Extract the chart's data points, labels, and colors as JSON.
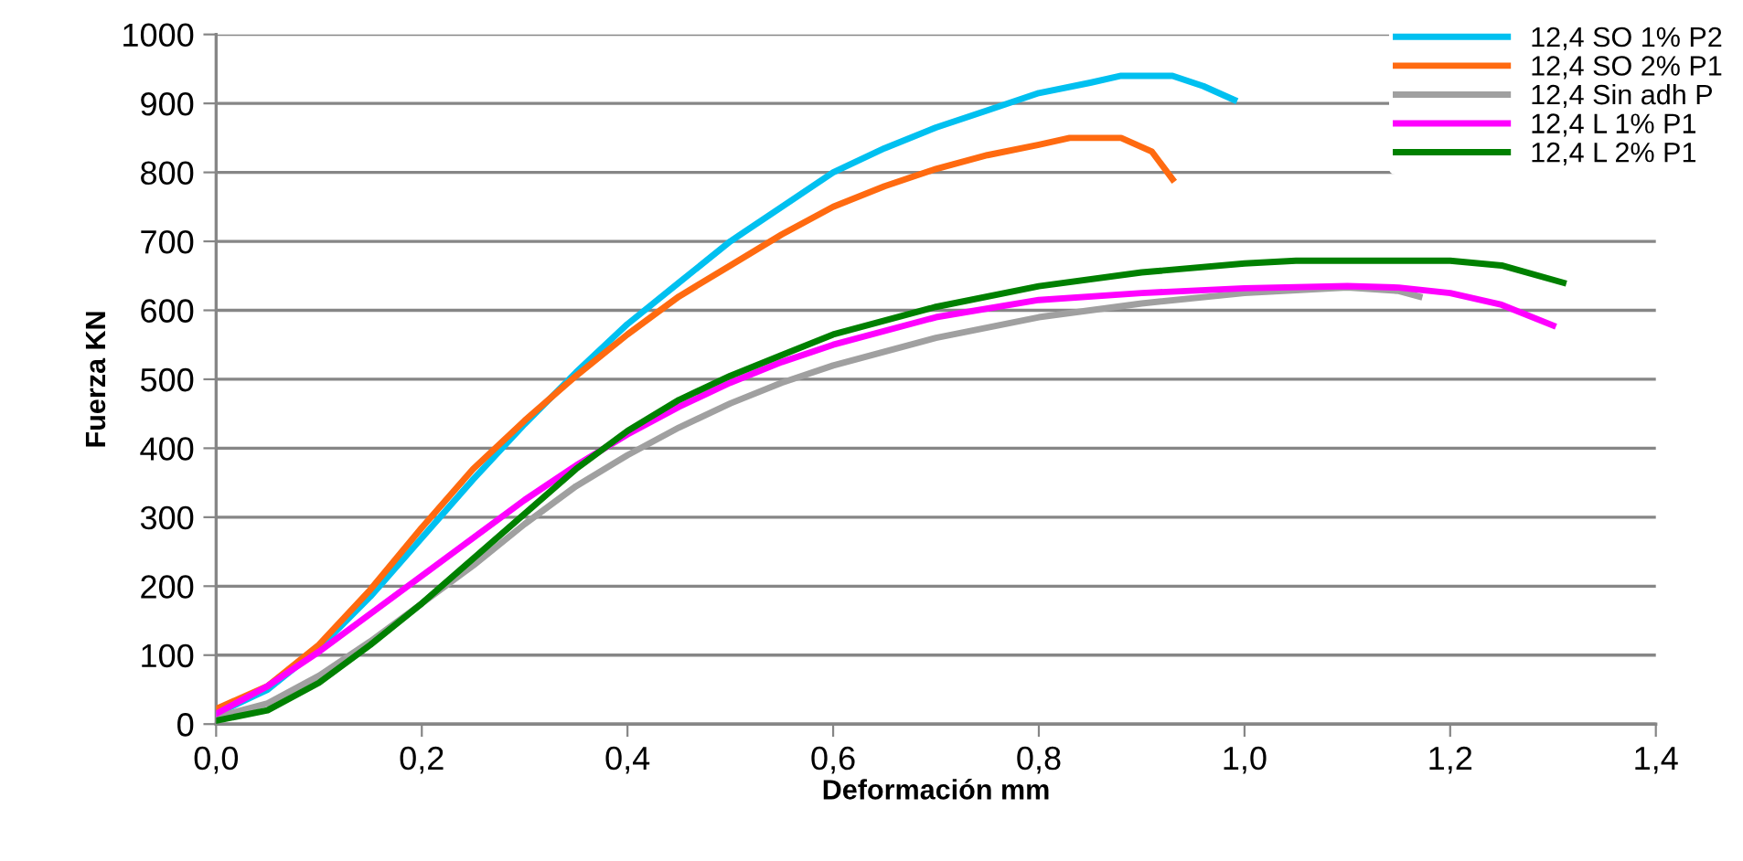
{
  "chart_data": {
    "type": "line",
    "xlabel": "Deformación mm",
    "ylabel": "Fuerza KN",
    "xlim": [
      0,
      1.4
    ],
    "xticks": [
      {
        "value": 0,
        "label": "0,0"
      },
      {
        "value": 0.2,
        "label": "0,2"
      },
      {
        "value": 0.4,
        "label": "0,4"
      },
      {
        "value": 0.6,
        "label": "0,6"
      },
      {
        "value": 0.8,
        "label": "0,8"
      },
      {
        "value": 1.0,
        "label": "1,0"
      },
      {
        "value": 1.2,
        "label": "1,2"
      },
      {
        "value": 1.4,
        "label": "1,4"
      }
    ],
    "ylim": [
      0,
      1000
    ],
    "yticks": [
      0,
      100,
      200,
      300,
      400,
      500,
      600,
      700,
      800,
      900,
      1000
    ],
    "grid": "y",
    "legend": "top right",
    "marker": "none",
    "line_style": "solid",
    "series": [
      {
        "name": "12,4 SO 1% P2",
        "color": "#00c0f0",
        "x": [
          0,
          0.05,
          0.1,
          0.15,
          0.2,
          0.25,
          0.3,
          0.35,
          0.4,
          0.45,
          0.5,
          0.55,
          0.6,
          0.65,
          0.7,
          0.75,
          0.8,
          0.85,
          0.88,
          0.93,
          0.96,
          0.99
        ],
        "values": [
          15,
          50,
          110,
          185,
          270,
          355,
          435,
          510,
          580,
          640,
          700,
          750,
          800,
          835,
          865,
          890,
          915,
          930,
          940,
          940,
          925,
          905
        ]
      },
      {
        "name": "12,4 SO 2% P1",
        "color": "#ff6a10",
        "x": [
          0,
          0.05,
          0.1,
          0.15,
          0.2,
          0.25,
          0.3,
          0.35,
          0.4,
          0.45,
          0.5,
          0.55,
          0.6,
          0.65,
          0.7,
          0.75,
          0.8,
          0.83,
          0.88,
          0.91,
          0.93
        ],
        "values": [
          22,
          55,
          115,
          195,
          285,
          370,
          440,
          505,
          565,
          620,
          665,
          710,
          750,
          780,
          805,
          825,
          840,
          850,
          850,
          830,
          790
        ]
      },
      {
        "name": "12,4 Sin adh P",
        "color": "#a0a0a0",
        "x": [
          0,
          0.05,
          0.1,
          0.15,
          0.2,
          0.25,
          0.3,
          0.35,
          0.4,
          0.45,
          0.5,
          0.55,
          0.6,
          0.7,
          0.8,
          0.9,
          1.0,
          1.1,
          1.15,
          1.17
        ],
        "values": [
          10,
          30,
          70,
          120,
          175,
          230,
          290,
          345,
          390,
          430,
          465,
          495,
          520,
          560,
          590,
          610,
          625,
          633,
          628,
          620
        ]
      },
      {
        "name": "12,4 L 1% P1",
        "color": "#ff00ff",
        "x": [
          0,
          0.05,
          0.1,
          0.15,
          0.2,
          0.25,
          0.3,
          0.35,
          0.4,
          0.45,
          0.5,
          0.55,
          0.6,
          0.7,
          0.8,
          0.9,
          1.0,
          1.1,
          1.15,
          1.2,
          1.25,
          1.3
        ],
        "values": [
          15,
          55,
          105,
          160,
          215,
          270,
          325,
          375,
          420,
          460,
          495,
          525,
          550,
          590,
          615,
          625,
          632,
          635,
          633,
          625,
          608,
          578
        ]
      },
      {
        "name": "12,4 L 2% P1",
        "color": "#008000",
        "x": [
          0,
          0.05,
          0.1,
          0.15,
          0.2,
          0.25,
          0.3,
          0.35,
          0.4,
          0.45,
          0.5,
          0.55,
          0.6,
          0.7,
          0.8,
          0.9,
          1.0,
          1.05,
          1.2,
          1.25,
          1.31
        ],
        "values": [
          5,
          20,
          60,
          115,
          175,
          240,
          305,
          370,
          425,
          470,
          505,
          535,
          565,
          605,
          635,
          655,
          668,
          672,
          672,
          665,
          640
        ]
      }
    ]
  }
}
